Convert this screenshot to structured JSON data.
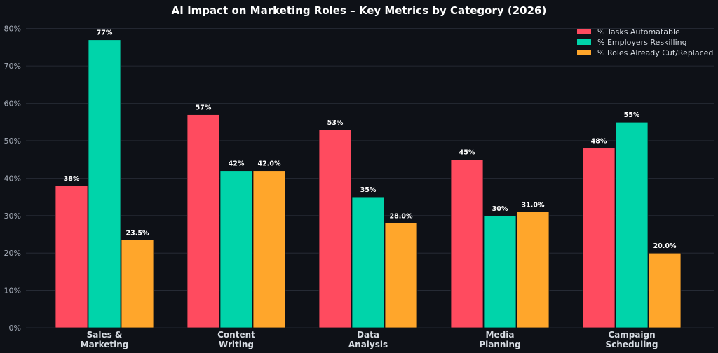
{
  "chart_data": {
    "type": "bar",
    "title": "AI Impact on Marketing Roles – Key Metrics by Category (2026)",
    "xlabel": "",
    "ylabel": "",
    "categories": [
      [
        "Sales &",
        "Marketing"
      ],
      [
        "Content",
        "Writing"
      ],
      [
        "Data",
        "Analysis"
      ],
      [
        "Media",
        "Planning"
      ],
      [
        "Campaign",
        "Scheduling"
      ]
    ],
    "series": [
      {
        "name": "% Tasks Automatable",
        "color": "#ff4b5f",
        "values": [
          38,
          57,
          53,
          45,
          48
        ],
        "labels": [
          "38%",
          "57%",
          "53%",
          "45%",
          "48%"
        ]
      },
      {
        "name": "% Employers Reskilling",
        "color": "#00d4aa",
        "values": [
          77,
          42,
          35,
          30,
          55
        ],
        "labels": [
          "77%",
          "42%",
          "35%",
          "30%",
          "55%"
        ]
      },
      {
        "name": "% Roles Already Cut/Replaced",
        "color": "#ffa62b",
        "values": [
          23.5,
          42.0,
          28.0,
          31.0,
          20.0
        ],
        "labels": [
          "23.5%",
          "42.0%",
          "28.0%",
          "31.0%",
          "20.0%"
        ]
      }
    ],
    "ylim": [
      0,
      82
    ],
    "yticks": [
      0,
      10,
      20,
      30,
      40,
      50,
      60,
      70,
      80
    ],
    "ytick_labels": [
      "0%",
      "10%",
      "20%",
      "30%",
      "40%",
      "50%",
      "60%",
      "70%",
      "80%"
    ],
    "grid": true,
    "legend_position": "top-right"
  }
}
